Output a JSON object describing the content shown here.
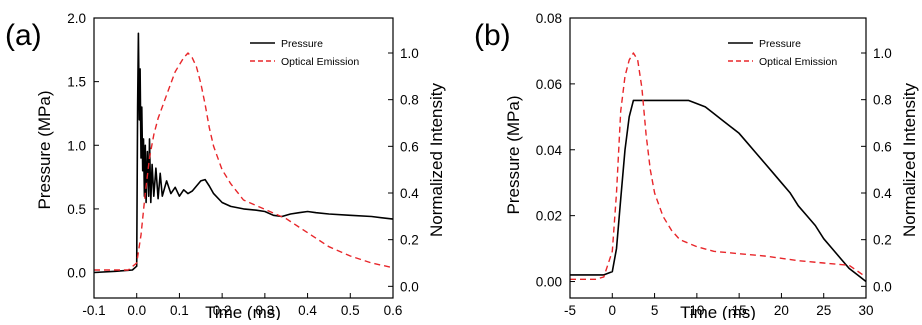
{
  "chart_data": [
    {
      "panel": "(a)",
      "type": "line",
      "xlabel": "Time (ms)",
      "ylabel": "Pressure (MPa)",
      "y2label": "Normalized Intensity",
      "xlim": [
        -0.1,
        0.6
      ],
      "ylim": [
        -0.2,
        2.0
      ],
      "y2lim": [
        -0.05,
        1.15
      ],
      "xticks": [
        "-0.1",
        "0.0",
        "0.1",
        "0.2",
        "0.3",
        "0.4",
        "0.5",
        "0.6"
      ],
      "yticks": [
        "0.0",
        "0.5",
        "1.0",
        "1.5",
        "2.0"
      ],
      "y2ticks": [
        "0.0",
        "0.2",
        "0.4",
        "0.6",
        "0.8",
        "1.0"
      ],
      "legend_position": "top-right",
      "series": [
        {
          "name": "Pressure",
          "axis": "left",
          "color": "#000000",
          "style": "solid",
          "points": [
            [
              -0.1,
              0.0
            ],
            [
              -0.05,
              0.01
            ],
            [
              -0.01,
              0.02
            ],
            [
              0.0,
              0.05
            ],
            [
              0.002,
              1.3
            ],
            [
              0.004,
              1.88
            ],
            [
              0.006,
              1.2
            ],
            [
              0.008,
              1.6
            ],
            [
              0.01,
              0.9
            ],
            [
              0.012,
              1.3
            ],
            [
              0.014,
              0.8
            ],
            [
              0.016,
              1.05
            ],
            [
              0.018,
              0.6
            ],
            [
              0.02,
              1.0
            ],
            [
              0.022,
              0.55
            ],
            [
              0.025,
              0.95
            ],
            [
              0.028,
              0.6
            ],
            [
              0.03,
              1.05
            ],
            [
              0.033,
              0.55
            ],
            [
              0.036,
              0.85
            ],
            [
              0.04,
              0.6
            ],
            [
              0.045,
              0.82
            ],
            [
              0.05,
              0.58
            ],
            [
              0.055,
              0.78
            ],
            [
              0.06,
              0.6
            ],
            [
              0.07,
              0.72
            ],
            [
              0.08,
              0.62
            ],
            [
              0.09,
              0.67
            ],
            [
              0.1,
              0.6
            ],
            [
              0.11,
              0.65
            ],
            [
              0.12,
              0.62
            ],
            [
              0.13,
              0.64
            ],
            [
              0.14,
              0.68
            ],
            [
              0.15,
              0.72
            ],
            [
              0.16,
              0.73
            ],
            [
              0.17,
              0.68
            ],
            [
              0.18,
              0.62
            ],
            [
              0.2,
              0.55
            ],
            [
              0.22,
              0.52
            ],
            [
              0.25,
              0.5
            ],
            [
              0.28,
              0.49
            ],
            [
              0.3,
              0.48
            ],
            [
              0.32,
              0.45
            ],
            [
              0.34,
              0.44
            ],
            [
              0.36,
              0.46
            ],
            [
              0.38,
              0.47
            ],
            [
              0.4,
              0.48
            ],
            [
              0.42,
              0.47
            ],
            [
              0.45,
              0.46
            ],
            [
              0.5,
              0.45
            ],
            [
              0.55,
              0.44
            ],
            [
              0.6,
              0.42
            ]
          ]
        },
        {
          "name": "Optical Emission",
          "axis": "right",
          "color": "#e8262a",
          "style": "dashed",
          "points": [
            [
              -0.1,
              0.07
            ],
            [
              -0.05,
              0.07
            ],
            [
              -0.02,
              0.07
            ],
            [
              0.0,
              0.1
            ],
            [
              0.01,
              0.22
            ],
            [
              0.02,
              0.4
            ],
            [
              0.03,
              0.55
            ],
            [
              0.04,
              0.65
            ],
            [
              0.05,
              0.72
            ],
            [
              0.07,
              0.82
            ],
            [
              0.09,
              0.92
            ],
            [
              0.11,
              0.98
            ],
            [
              0.12,
              1.0
            ],
            [
              0.13,
              0.98
            ],
            [
              0.14,
              0.94
            ],
            [
              0.15,
              0.87
            ],
            [
              0.16,
              0.78
            ],
            [
              0.17,
              0.68
            ],
            [
              0.18,
              0.6
            ],
            [
              0.2,
              0.5
            ],
            [
              0.22,
              0.44
            ],
            [
              0.25,
              0.37
            ],
            [
              0.3,
              0.33
            ],
            [
              0.35,
              0.29
            ],
            [
              0.4,
              0.23
            ],
            [
              0.45,
              0.17
            ],
            [
              0.5,
              0.13
            ],
            [
              0.55,
              0.1
            ],
            [
              0.6,
              0.08
            ]
          ]
        }
      ]
    },
    {
      "panel": "(b)",
      "type": "line",
      "xlabel": "Time (ms)",
      "ylabel": "Pressure (MPa)",
      "y2label": "Normalized Intensity",
      "xlim": [
        -5,
        30
      ],
      "ylim": [
        -0.005,
        0.08
      ],
      "y2lim": [
        -0.05,
        1.15
      ],
      "xticks": [
        "-5",
        "0",
        "5",
        "10",
        "15",
        "20",
        "25",
        "30"
      ],
      "yticks": [
        "0.00",
        "0.02",
        "0.04",
        "0.06",
        "0.08"
      ],
      "y2ticks": [
        "0.0",
        "0.2",
        "0.4",
        "0.6",
        "0.8",
        "1.0"
      ],
      "legend_position": "top-right",
      "series": [
        {
          "name": "Pressure",
          "axis": "left",
          "color": "#000000",
          "style": "solid",
          "points": [
            [
              -5,
              0.002
            ],
            [
              -3,
              0.002
            ],
            [
              -1,
              0.002
            ],
            [
              0,
              0.003
            ],
            [
              0.5,
              0.01
            ],
            [
              1,
              0.025
            ],
            [
              1.5,
              0.04
            ],
            [
              2,
              0.05
            ],
            [
              2.5,
              0.055
            ],
            [
              3,
              0.055
            ],
            [
              4,
              0.055
            ],
            [
              5,
              0.055
            ],
            [
              6,
              0.055
            ],
            [
              7,
              0.055
            ],
            [
              8,
              0.055
            ],
            [
              9,
              0.055
            ],
            [
              10,
              0.054
            ],
            [
              11,
              0.053
            ],
            [
              12,
              0.051
            ],
            [
              13,
              0.049
            ],
            [
              14,
              0.047
            ],
            [
              15,
              0.045
            ],
            [
              16,
              0.042
            ],
            [
              17,
              0.039
            ],
            [
              18,
              0.036
            ],
            [
              19,
              0.033
            ],
            [
              20,
              0.03
            ],
            [
              21,
              0.027
            ],
            [
              22,
              0.023
            ],
            [
              23,
              0.02
            ],
            [
              24,
              0.017
            ],
            [
              25,
              0.013
            ],
            [
              26,
              0.01
            ],
            [
              27,
              0.007
            ],
            [
              28,
              0.004
            ],
            [
              29,
              0.002
            ],
            [
              30,
              0.0
            ]
          ]
        },
        {
          "name": "Optical Emission",
          "axis": "right",
          "color": "#e8262a",
          "style": "dashed",
          "points": [
            [
              -5,
              0.03
            ],
            [
              -2,
              0.03
            ],
            [
              -1,
              0.04
            ],
            [
              0,
              0.15
            ],
            [
              0.5,
              0.4
            ],
            [
              1,
              0.75
            ],
            [
              1.5,
              0.9
            ],
            [
              2,
              0.97
            ],
            [
              2.5,
              1.0
            ],
            [
              3,
              0.97
            ],
            [
              3.5,
              0.85
            ],
            [
              4,
              0.65
            ],
            [
              4.5,
              0.5
            ],
            [
              5,
              0.4
            ],
            [
              6,
              0.3
            ],
            [
              7,
              0.24
            ],
            [
              8,
              0.2
            ],
            [
              10,
              0.17
            ],
            [
              12,
              0.15
            ],
            [
              15,
              0.14
            ],
            [
              18,
              0.13
            ],
            [
              20,
              0.12
            ],
            [
              22,
              0.11
            ],
            [
              25,
              0.1
            ],
            [
              28,
              0.09
            ],
            [
              30,
              0.04
            ]
          ]
        }
      ]
    }
  ]
}
